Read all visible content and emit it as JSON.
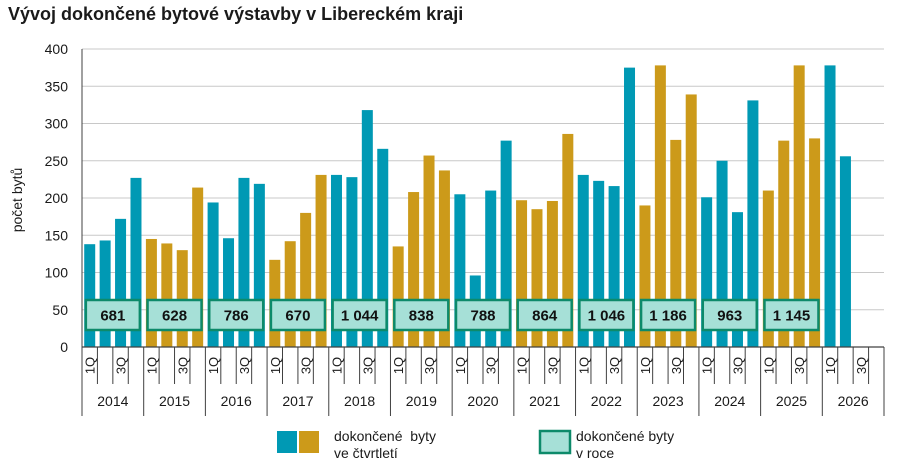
{
  "chart_data": {
    "type": "bar",
    "title": "Vývoj dokončené bytové výstavby v Libereckém kraji",
    "ylabel": "počet bytů",
    "xlabel": "",
    "ylim": [
      0,
      400
    ],
    "yticks": [
      0,
      50,
      100,
      150,
      200,
      250,
      300,
      350,
      400
    ],
    "grid": true,
    "colors": {
      "teal": "#0099b4",
      "gold": "#cc9a1a",
      "box_fill": "#a6e0d7",
      "box_border": "#0d8a6a"
    },
    "quarter_tick_labels": [
      "1Q",
      "3Q"
    ],
    "years": [
      {
        "year": "2014",
        "color": "teal",
        "quarters": [
          138,
          143,
          172,
          227
        ],
        "annual": "681"
      },
      {
        "year": "2015",
        "color": "gold",
        "quarters": [
          145,
          139,
          130,
          214
        ],
        "annual": "628"
      },
      {
        "year": "2016",
        "color": "teal",
        "quarters": [
          194,
          146,
          227,
          219
        ],
        "annual": "786"
      },
      {
        "year": "2017",
        "color": "gold",
        "quarters": [
          117,
          142,
          180,
          231
        ],
        "annual": "670"
      },
      {
        "year": "2018",
        "color": "teal",
        "quarters": [
          231,
          228,
          318,
          266
        ],
        "annual": "1 044"
      },
      {
        "year": "2019",
        "color": "gold",
        "quarters": [
          135,
          208,
          257,
          237
        ],
        "annual": "838"
      },
      {
        "year": "2020",
        "color": "teal",
        "quarters": [
          205,
          96,
          210,
          277
        ],
        "annual": "788"
      },
      {
        "year": "2021",
        "color": "gold",
        "quarters": [
          197,
          185,
          196,
          286
        ],
        "annual": "864"
      },
      {
        "year": "2022",
        "color": "teal",
        "quarters": [
          231,
          223,
          216,
          375
        ],
        "annual": "1 046"
      },
      {
        "year": "2023",
        "color": "gold",
        "quarters": [
          190,
          378,
          278,
          339
        ],
        "annual": "1 186"
      },
      {
        "year": "2024",
        "color": "teal",
        "quarters": [
          201,
          250,
          181,
          331
        ],
        "annual": "963"
      },
      {
        "year": "2025",
        "color": "gold",
        "quarters": [
          210,
          277,
          378,
          280
        ],
        "annual": "1 145"
      },
      {
        "year": "2026",
        "color": "teal",
        "quarters": [
          378,
          256
        ],
        "annual": ""
      }
    ]
  },
  "legend": {
    "quarterly_label_line1": "dokončené  byty",
    "quarterly_label_line2": "ve čtvrtletí",
    "annual_label_line1": "dokončené byty",
    "annual_label_line2": "v roce"
  }
}
